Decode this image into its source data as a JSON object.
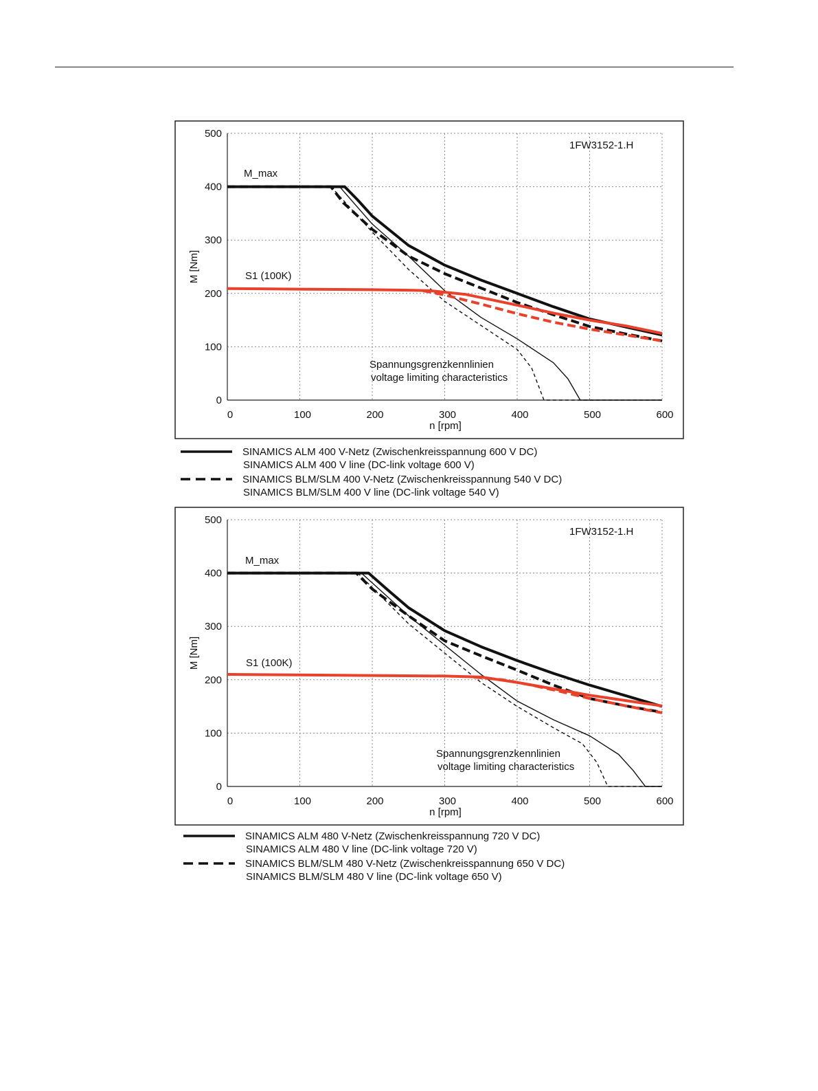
{
  "chart_data": [
    {
      "type": "line",
      "annotation": "1FW3152-1.H",
      "xlabel": "n [rpm]",
      "ylabel": "M [Nm]",
      "xlim": [
        0,
        600
      ],
      "ylim": [
        0,
        500
      ],
      "x_ticks": [
        "0",
        "100",
        "200",
        "300",
        "400",
        "500",
        "600"
      ],
      "y_ticks": [
        "0",
        "100",
        "200",
        "300",
        "400",
        "500"
      ],
      "grid": true,
      "labels": {
        "mmax": "M_max",
        "s1": "S1 (100K)",
        "limit_de": "Spannungsgrenzkennlinien",
        "limit_en": "voltage limiting characteristics"
      },
      "legend": [
        {
          "style": "solid",
          "line1": "SINAMICS ALM  400 V-Netz (Zwischenkreisspannung 600 V DC)",
          "line2": "SINAMICS ALM  400 V line (DC-link voltage 600 V)"
        },
        {
          "style": "dashed",
          "line1": "SINAMICS BLM/SLM  400 V-Netz (Zwischenkreisspannung 540 V DC)",
          "line2": "SINAMICS BLM/SLM  400 V line (DC-link voltage 540 V)"
        }
      ],
      "colors": {
        "black": "#111111",
        "red": "#e8412c"
      },
      "series": [
        {
          "color": "black",
          "style": "solid",
          "width": "thick",
          "points": [
            [
              0,
              400
            ],
            [
              162,
              400
            ],
            [
              180,
              375
            ],
            [
              200,
              345
            ],
            [
              250,
              290
            ],
            [
              300,
              253
            ],
            [
              350,
              225
            ],
            [
              400,
              200
            ],
            [
              450,
              175
            ],
            [
              500,
              152
            ],
            [
              550,
              137
            ],
            [
              600,
              122
            ]
          ]
        },
        {
          "color": "black",
          "style": "dashed",
          "width": "thick",
          "points": [
            [
              0,
              400
            ],
            [
              143,
              400
            ],
            [
              160,
              370
            ],
            [
              180,
              345
            ],
            [
              200,
              320
            ],
            [
              250,
              270
            ],
            [
              300,
              237
            ],
            [
              350,
              210
            ],
            [
              400,
              183
            ],
            [
              450,
              160
            ],
            [
              500,
              138
            ],
            [
              550,
              124
            ],
            [
              600,
              111
            ]
          ]
        },
        {
          "color": "black",
          "style": "solid",
          "width": "thin",
          "points": [
            [
              155,
              400
            ],
            [
              200,
              330
            ],
            [
              250,
              270
            ],
            [
              300,
              205
            ],
            [
              350,
              155
            ],
            [
              400,
              115
            ],
            [
              450,
              70
            ],
            [
              470,
              40
            ],
            [
              487,
              0
            ],
            [
              600,
              0
            ]
          ]
        },
        {
          "color": "black",
          "style": "dashed",
          "width": "thin",
          "points": [
            [
              143,
              400
            ],
            [
              200,
              315
            ],
            [
              250,
              245
            ],
            [
              300,
              185
            ],
            [
              350,
              140
            ],
            [
              400,
              95
            ],
            [
              420,
              60
            ],
            [
              437,
              0
            ],
            [
              600,
              0
            ]
          ]
        },
        {
          "color": "red",
          "style": "solid",
          "width": "thick",
          "points": [
            [
              0,
              209
            ],
            [
              100,
              208
            ],
            [
              200,
              207
            ],
            [
              250,
              206
            ],
            [
              280,
              205
            ],
            [
              330,
              198
            ],
            [
              400,
              178
            ],
            [
              450,
              163
            ],
            [
              500,
              150
            ],
            [
              550,
              139
            ],
            [
              600,
              125
            ]
          ]
        },
        {
          "color": "red",
          "style": "dashed",
          "width": "thick",
          "points": [
            [
              270,
              205
            ],
            [
              300,
              197
            ],
            [
              350,
              180
            ],
            [
              400,
              162
            ],
            [
              450,
              146
            ],
            [
              500,
              133
            ],
            [
              550,
              122
            ],
            [
              600,
              111
            ]
          ]
        }
      ]
    },
    {
      "type": "line",
      "annotation": "1FW3152-1.H",
      "xlabel": "n [rpm]",
      "ylabel": "M [Nm]",
      "xlim": [
        0,
        600
      ],
      "ylim": [
        0,
        500
      ],
      "x_ticks": [
        "0",
        "100",
        "200",
        "300",
        "400",
        "500",
        "600"
      ],
      "y_ticks": [
        "0",
        "100",
        "200",
        "300",
        "400",
        "500"
      ],
      "grid": true,
      "labels": {
        "mmax": "M_max",
        "s1": "S1 (100K)",
        "limit_de": "Spannungsgrenzkennlinien",
        "limit_en": "voltage limiting characteristics"
      },
      "legend": [
        {
          "style": "solid",
          "line1": "SINAMICS ALM  480 V-Netz (Zwischenkreisspannung 720 V DC)",
          "line2": "SINAMICS ALM  480 V line (DC-link voltage 720 V)"
        },
        {
          "style": "dashed",
          "line1": "SINAMICS BLM/SLM  480 V-Netz (Zwischenkreisspannung 650 V DC)",
          "line2": "SINAMICS BLM/SLM  480 V line (DC-link voltage 650 V)"
        }
      ],
      "colors": {
        "black": "#111111",
        "red": "#e8412c"
      },
      "series": [
        {
          "color": "black",
          "style": "solid",
          "width": "thick",
          "points": [
            [
              0,
              400
            ],
            [
              195,
              400
            ],
            [
              220,
              370
            ],
            [
              250,
              335
            ],
            [
              300,
              292
            ],
            [
              350,
              262
            ],
            [
              400,
              236
            ],
            [
              450,
              212
            ],
            [
              500,
              190
            ],
            [
              550,
              170
            ],
            [
              600,
              150
            ]
          ]
        },
        {
          "color": "black",
          "style": "dashed",
          "width": "thick",
          "points": [
            [
              0,
              400
            ],
            [
              178,
              400
            ],
            [
              200,
              370
            ],
            [
              250,
              320
            ],
            [
              300,
              273
            ],
            [
              350,
              245
            ],
            [
              400,
              218
            ],
            [
              450,
              190
            ],
            [
              500,
              165
            ],
            [
              550,
              151
            ],
            [
              600,
              139
            ]
          ]
        },
        {
          "color": "black",
          "style": "solid",
          "width": "thin",
          "points": [
            [
              185,
              400
            ],
            [
              250,
              320
            ],
            [
              300,
              265
            ],
            [
              350,
              210
            ],
            [
              400,
              160
            ],
            [
              450,
              125
            ],
            [
              500,
              95
            ],
            [
              540,
              60
            ],
            [
              560,
              30
            ],
            [
              577,
              0
            ],
            [
              600,
              0
            ]
          ]
        },
        {
          "color": "black",
          "style": "dashed",
          "width": "thin",
          "points": [
            [
              180,
              400
            ],
            [
              250,
              305
            ],
            [
              300,
              250
            ],
            [
              350,
              195
            ],
            [
              400,
              150
            ],
            [
              450,
              110
            ],
            [
              490,
              80
            ],
            [
              510,
              45
            ],
            [
              525,
              0
            ],
            [
              600,
              0
            ]
          ]
        },
        {
          "color": "red",
          "style": "solid",
          "width": "thick",
          "points": [
            [
              0,
              210
            ],
            [
              100,
              209
            ],
            [
              200,
              208
            ],
            [
              300,
              207
            ],
            [
              350,
              205
            ],
            [
              400,
              195
            ],
            [
              450,
              183
            ],
            [
              500,
              171
            ],
            [
              550,
              161
            ],
            [
              600,
              151
            ]
          ]
        },
        {
          "color": "red",
          "style": "dashed",
          "width": "thick",
          "points": [
            [
              340,
              205
            ],
            [
              380,
              200
            ],
            [
              420,
              190
            ],
            [
              460,
              178
            ],
            [
              500,
              165
            ],
            [
              550,
              151
            ],
            [
              600,
              138
            ]
          ]
        }
      ]
    }
  ]
}
